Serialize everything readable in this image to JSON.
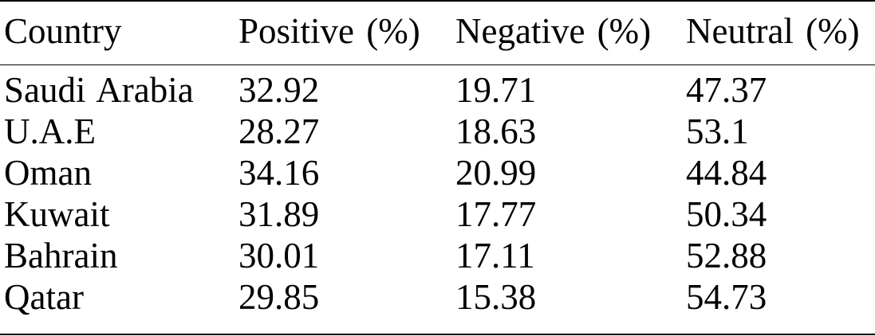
{
  "table": {
    "headers": [
      "Country",
      "Positive (%)",
      "Negative (%)",
      "Neutral (%)"
    ],
    "rows": [
      [
        "Saudi Arabia",
        "32.92",
        "19.71",
        "47.37"
      ],
      [
        "U.A.E",
        "28.27",
        "18.63",
        "53.1"
      ],
      [
        "Oman",
        "34.16",
        "20.99",
        "44.84"
      ],
      [
        "Kuwait",
        "31.89",
        "17.77",
        "50.34"
      ],
      [
        "Bahrain",
        "30.01",
        "17.11",
        "52.88"
      ],
      [
        "Qatar",
        "29.85",
        "15.38",
        "54.73"
      ]
    ]
  }
}
